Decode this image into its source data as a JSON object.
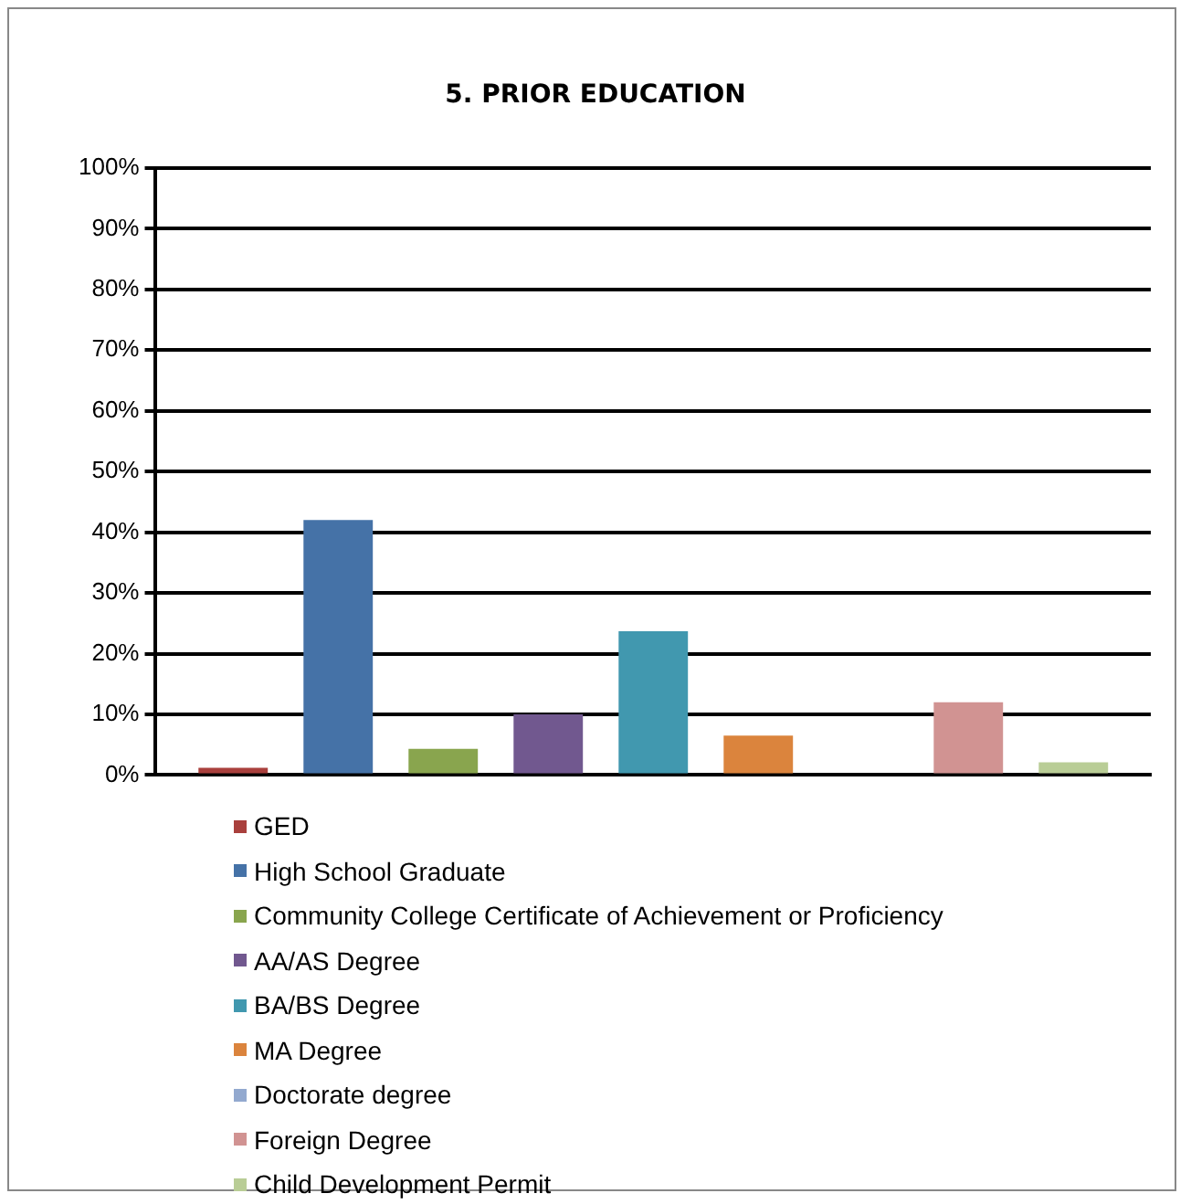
{
  "chart_data": {
    "type": "bar",
    "title": "5. PRIOR EDUCATION",
    "categories": [
      null
    ],
    "series": [
      {
        "name": "GED",
        "color": "#a9403d",
        "values": [
          1.2
        ]
      },
      {
        "name": "High School Graduate",
        "color": "#4572a7",
        "values": [
          42
        ]
      },
      {
        "name": "Community College Certificate of Achievement or Proficiency",
        "color": "#89a54e",
        "values": [
          4.3
        ]
      },
      {
        "name": "AA/AS Degree",
        "color": "#71588f",
        "values": [
          10
        ]
      },
      {
        "name": "BA/BS Degree",
        "color": "#4198af",
        "values": [
          23.7
        ]
      },
      {
        "name": "MA Degree",
        "color": "#db843d",
        "values": [
          6.5
        ]
      },
      {
        "name": "Doctorate degree",
        "color": "#93a9cf",
        "values": [
          0
        ]
      },
      {
        "name": "Foreign Degree",
        "color": "#d19392",
        "values": [
          12
        ]
      },
      {
        "name": "Child Development Permit",
        "color": "#b9cd96",
        "values": [
          2.1
        ]
      }
    ],
    "ylim": [
      0,
      100
    ],
    "yticks": [
      {
        "value": 0,
        "label": "0%"
      },
      {
        "value": 10,
        "label": "10%"
      },
      {
        "value": 20,
        "label": "20%"
      },
      {
        "value": 30,
        "label": "30%"
      },
      {
        "value": 40,
        "label": "40%"
      },
      {
        "value": 50,
        "label": "50%"
      },
      {
        "value": 60,
        "label": "60%"
      },
      {
        "value": 70,
        "label": "70%"
      },
      {
        "value": 80,
        "label": "80%"
      },
      {
        "value": 90,
        "label": "90%"
      },
      {
        "value": 100,
        "label": "100%"
      }
    ],
    "grid": "y",
    "legend": "bottom"
  }
}
